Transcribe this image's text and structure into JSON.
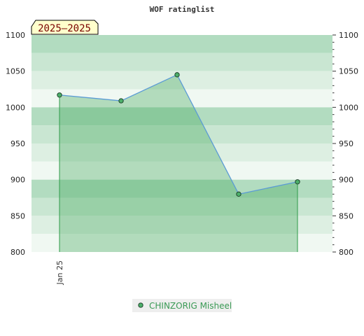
{
  "chart_data": {
    "type": "area",
    "title": "WOF ratinglist",
    "period_label": "2025–2025",
    "xlabel": "",
    "ylabel": "",
    "ylim": [
      800,
      1100
    ],
    "yticks": [
      800,
      850,
      900,
      950,
      1000,
      1050,
      1100
    ],
    "ytick_labels": [
      "800",
      "850",
      "900",
      "950",
      "1000",
      "1050",
      "1100"
    ],
    "x_tick_labels": [
      {
        "label": "Jan 25",
        "month_index": 0
      }
    ],
    "grid": true,
    "legend_position": "bottom-center",
    "series": [
      {
        "name": "CHINZORIG Misheel",
        "points": [
          {
            "month_index": 0,
            "value": 1017
          },
          {
            "month_index": 2.2,
            "value": 1009
          },
          {
            "month_index": 4.2,
            "value": 1045
          },
          {
            "month_index": 6.4,
            "value": 880
          },
          {
            "month_index": 8.5,
            "value": 897
          }
        ]
      }
    ],
    "colors": {
      "band_dark": "#b2dcc0",
      "band_mid": "#c9e6d2",
      "band_light": "#ddefe2",
      "band_lightest": "#f0f8f2",
      "area_fill": "#3fa558",
      "area_edge": "#2e9a48",
      "line": "#5b9bd5",
      "marker_fill": "#4caf6a",
      "marker_stroke": "#1a3a25",
      "legend_text": "#3a9a55",
      "legend_bg": "#eeeeee",
      "badge_bg": "#ffffcc",
      "badge_border": "#000000"
    }
  }
}
